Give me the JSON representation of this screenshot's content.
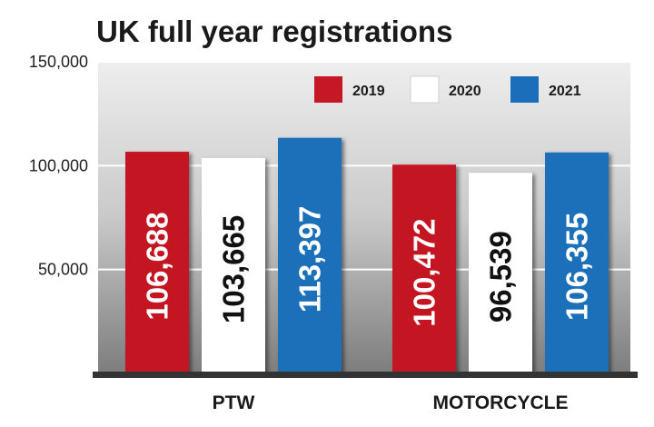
{
  "chart_data": {
    "type": "bar",
    "title": "UK full year registrations",
    "categories": [
      "PTW",
      "MOTORCYCLE"
    ],
    "series": [
      {
        "name": "2019",
        "values": [
          106688,
          100472
        ],
        "color": "#c41924",
        "label_color": "#ffffff"
      },
      {
        "name": "2020",
        "values": [
          103665,
          96539
        ],
        "color": "#ffffff",
        "label_color": "#111111"
      },
      {
        "name": "2021",
        "values": [
          113397,
          106355
        ],
        "color": "#1b6fba",
        "label_color": "#ffffff"
      }
    ],
    "data_labels": [
      [
        "106,688",
        "100,472"
      ],
      [
        "103,665",
        "96,539"
      ],
      [
        "113,397",
        "106,355"
      ]
    ],
    "ylim": [
      0,
      150000
    ],
    "yticks": [
      {
        "value": 150000,
        "label": "150,000"
      },
      {
        "value": 100000,
        "label": "100,000"
      },
      {
        "value": 50000,
        "label": "50,000"
      }
    ],
    "grid": true,
    "legend_position": "top-right",
    "xlabel": "",
    "ylabel": ""
  }
}
